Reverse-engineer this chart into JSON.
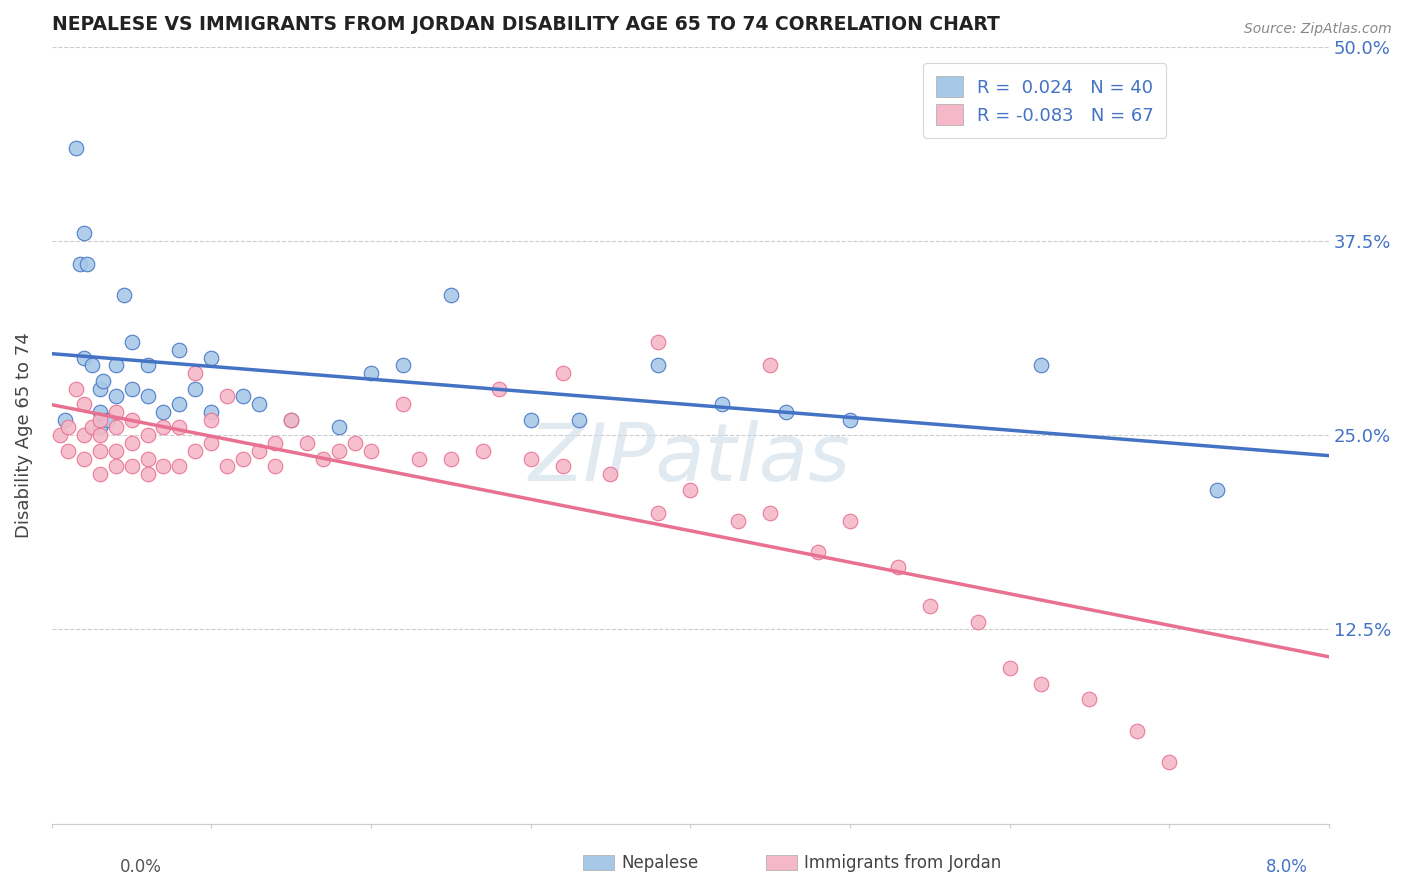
{
  "title": "NEPALESE VS IMMIGRANTS FROM JORDAN DISABILITY AGE 65 TO 74 CORRELATION CHART",
  "source_text": "Source: ZipAtlas.com",
  "ylabel": "Disability Age 65 to 74",
  "xlim": [
    0.0,
    0.08
  ],
  "ylim": [
    0.0,
    0.5
  ],
  "xticks": [
    0.0,
    0.01,
    0.02,
    0.03,
    0.04,
    0.05,
    0.06,
    0.07,
    0.08
  ],
  "yticks": [
    0.0,
    0.125,
    0.25,
    0.375,
    0.5
  ],
  "yticklabels_right": [
    "",
    "12.5%",
    "25.0%",
    "37.5%",
    "50.0%"
  ],
  "nepalese_R": 0.024,
  "nepalese_N": 40,
  "jordan_R": -0.083,
  "jordan_N": 67,
  "nepalese_color": "#a8c8e8",
  "jordan_color": "#f4b8c8",
  "nepalese_line_color": "#4472c4",
  "jordan_line_color": "#e87090",
  "grid_color": "#cccccc",
  "background_color": "#ffffff",
  "watermark_text": "ZIPatlas",
  "legend_label_nepalese": "Nepalese",
  "legend_label_jordan": "Immigrants from Jordan",
  "nepalese_x": [
    0.0008,
    0.0015,
    0.0018,
    0.002,
    0.002,
    0.0022,
    0.0025,
    0.003,
    0.003,
    0.003,
    0.0032,
    0.0035,
    0.004,
    0.004,
    0.0045,
    0.005,
    0.005,
    0.006,
    0.006,
    0.007,
    0.008,
    0.008,
    0.009,
    0.01,
    0.01,
    0.012,
    0.013,
    0.015,
    0.018,
    0.02,
    0.022,
    0.025,
    0.03,
    0.033,
    0.038,
    0.042,
    0.046,
    0.05,
    0.062,
    0.073
  ],
  "nepalese_y": [
    0.26,
    0.435,
    0.36,
    0.3,
    0.38,
    0.36,
    0.295,
    0.28,
    0.265,
    0.255,
    0.285,
    0.26,
    0.295,
    0.275,
    0.34,
    0.31,
    0.28,
    0.295,
    0.275,
    0.265,
    0.305,
    0.27,
    0.28,
    0.265,
    0.3,
    0.275,
    0.27,
    0.26,
    0.255,
    0.29,
    0.295,
    0.34,
    0.26,
    0.26,
    0.295,
    0.27,
    0.265,
    0.26,
    0.295,
    0.215
  ],
  "jordan_x": [
    0.0005,
    0.001,
    0.001,
    0.0015,
    0.002,
    0.002,
    0.002,
    0.0025,
    0.003,
    0.003,
    0.003,
    0.003,
    0.004,
    0.004,
    0.004,
    0.004,
    0.005,
    0.005,
    0.005,
    0.006,
    0.006,
    0.006,
    0.007,
    0.007,
    0.008,
    0.008,
    0.009,
    0.009,
    0.01,
    0.01,
    0.011,
    0.011,
    0.012,
    0.013,
    0.014,
    0.014,
    0.015,
    0.016,
    0.017,
    0.018,
    0.019,
    0.02,
    0.022,
    0.023,
    0.025,
    0.027,
    0.028,
    0.03,
    0.032,
    0.035,
    0.038,
    0.04,
    0.043,
    0.045,
    0.048,
    0.05,
    0.053,
    0.055,
    0.058,
    0.06,
    0.062,
    0.065,
    0.068,
    0.07,
    0.032,
    0.038,
    0.045
  ],
  "jordan_y": [
    0.25,
    0.255,
    0.24,
    0.28,
    0.27,
    0.25,
    0.235,
    0.255,
    0.25,
    0.24,
    0.26,
    0.225,
    0.24,
    0.255,
    0.265,
    0.23,
    0.245,
    0.26,
    0.23,
    0.235,
    0.25,
    0.225,
    0.255,
    0.23,
    0.23,
    0.255,
    0.29,
    0.24,
    0.245,
    0.26,
    0.275,
    0.23,
    0.235,
    0.24,
    0.23,
    0.245,
    0.26,
    0.245,
    0.235,
    0.24,
    0.245,
    0.24,
    0.27,
    0.235,
    0.235,
    0.24,
    0.28,
    0.235,
    0.23,
    0.225,
    0.2,
    0.215,
    0.195,
    0.2,
    0.175,
    0.195,
    0.165,
    0.14,
    0.13,
    0.1,
    0.09,
    0.08,
    0.06,
    0.04,
    0.29,
    0.31,
    0.295
  ]
}
